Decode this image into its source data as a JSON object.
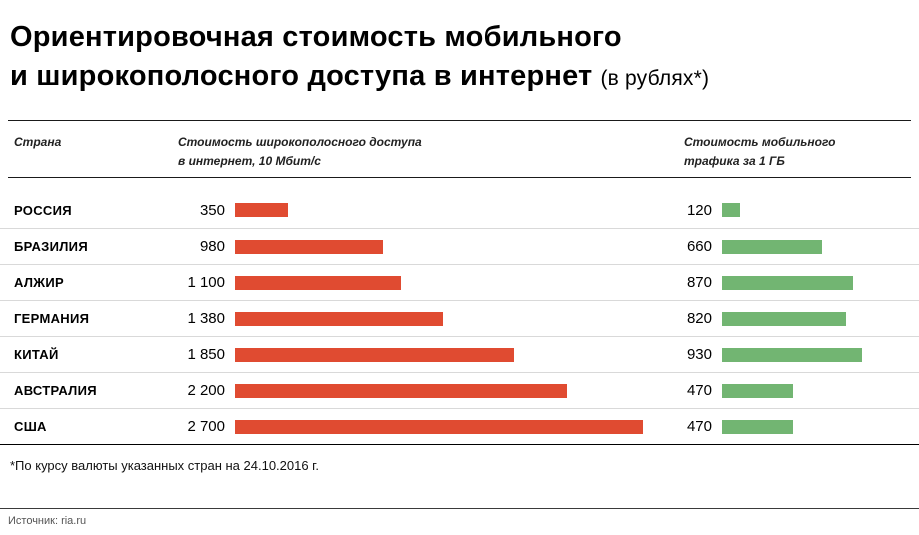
{
  "title": {
    "line1": "Ориентировочная стоимость мобильного",
    "line2": "и широкополосного доступа в интернет",
    "suffix": "(в рублях*)"
  },
  "header": {
    "country": "Страна",
    "broadband_line1": "Стоимость широкополосного доступа",
    "broadband_line2": "в интернет, 10 Мбит/с",
    "mobile_line1": "Стоимость мобильного",
    "mobile_line2": "трафика за 1 ГБ"
  },
  "rows": [
    {
      "country": "РОССИЯ",
      "broadband_label": "350",
      "mobile_label": "120"
    },
    {
      "country": "БРАЗИЛИЯ",
      "broadband_label": "980",
      "mobile_label": "660"
    },
    {
      "country": "АЛЖИР",
      "broadband_label": "1 100",
      "mobile_label": "870"
    },
    {
      "country": "ГЕРМАНИЯ",
      "broadband_label": "1 380",
      "mobile_label": "820"
    },
    {
      "country": "КИТАЙ",
      "broadband_label": "1 850",
      "mobile_label": "930"
    },
    {
      "country": "АВСТРАЛИЯ",
      "broadband_label": "2 200",
      "mobile_label": "470"
    },
    {
      "country": "США",
      "broadband_label": "2 700",
      "mobile_label": "470"
    }
  ],
  "footnote": "*По курсу валюты указанных стран на 24.10.2016 г.",
  "source": "Источник: ria.ru",
  "chart_data": {
    "type": "bar",
    "orientation": "horizontal",
    "title": "Ориентировочная стоимость мобильного и широкополосного доступа в интернет (в рублях*)",
    "categories": [
      "Россия",
      "Бразилия",
      "Алжир",
      "Германия",
      "Китай",
      "Австралия",
      "США"
    ],
    "series": [
      {
        "name": "Стоимость широкополосного доступа в интернет, 10 Мбит/с",
        "values": [
          350,
          980,
          1100,
          1380,
          1850,
          2200,
          2700
        ],
        "color": "#e04b31"
      },
      {
        "name": "Стоимость мобильного трафика за 1 ГБ",
        "values": [
          120,
          660,
          870,
          820,
          930,
          470,
          470
        ],
        "color": "#72b572"
      }
    ],
    "unit": "руб.",
    "xlim": [
      0,
      2800
    ],
    "grid": false,
    "legend_position": "column-headers",
    "footnote": "*По курсу валюты указанных стран на 24.10.2016 г.",
    "source": "Источник: ria.ru"
  }
}
